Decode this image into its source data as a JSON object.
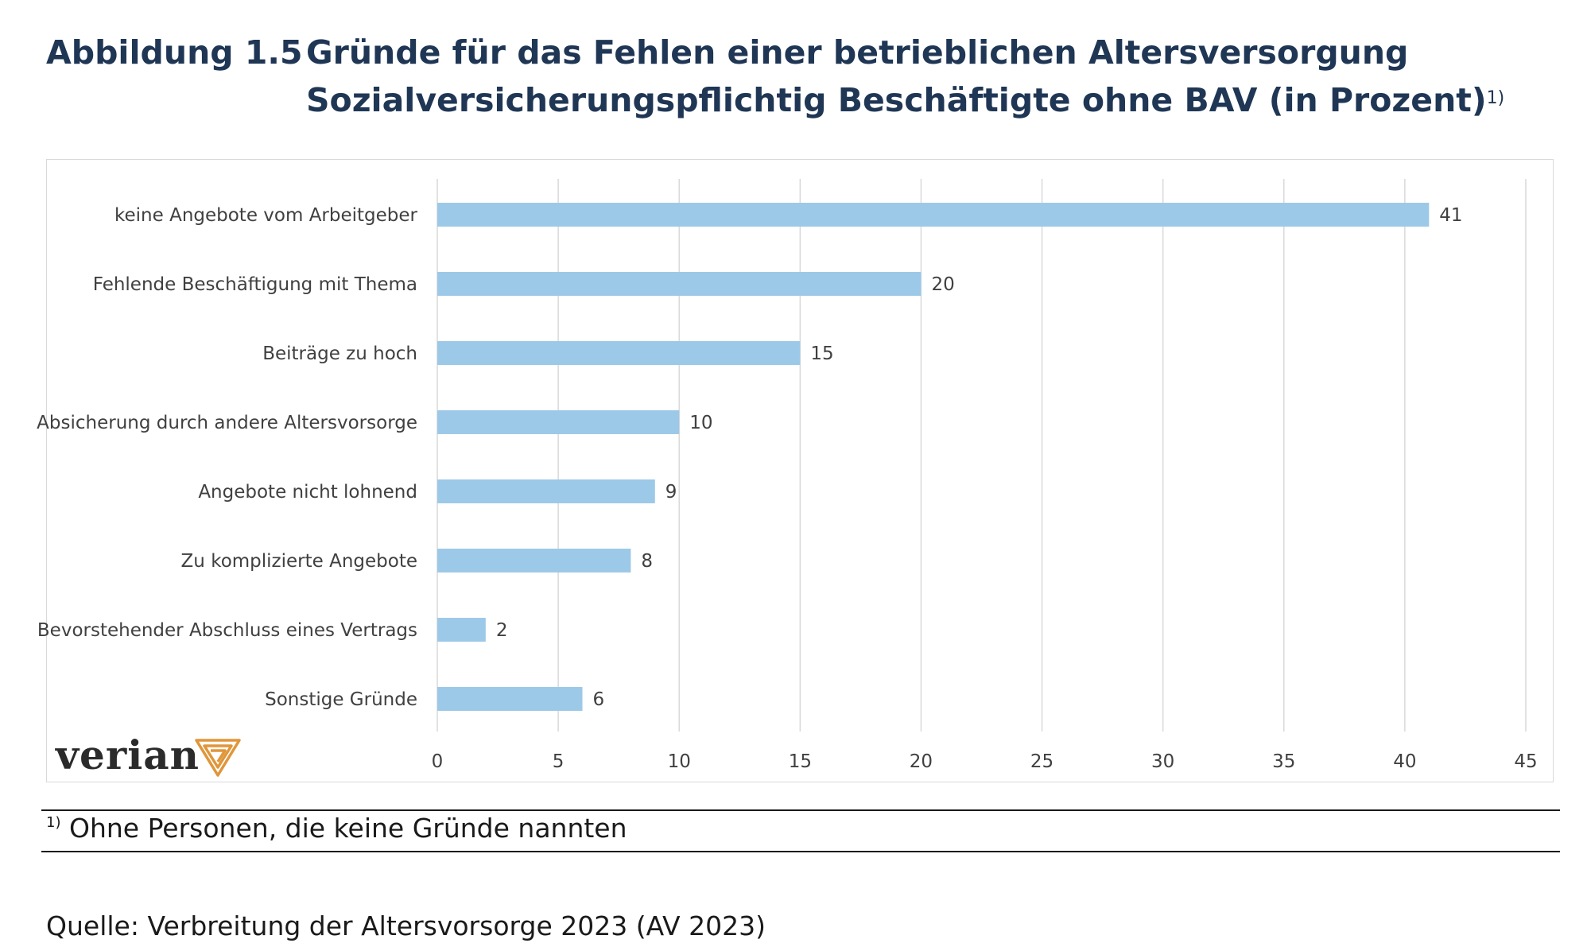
{
  "header": {
    "figure_label": "Abbildung 1.5",
    "title_line1": "Gründe für das Fehlen einer betrieblichen Altersversorgung",
    "title_line2": "Sozialversicherungspflichtig Beschäftigte ohne BAV (in Prozent)",
    "title_footnote_mark": "1)"
  },
  "logo": {
    "text": "verian",
    "mark_icon": "verian-triangle-logo-icon",
    "color": "#e0963a"
  },
  "footnote": {
    "mark": "1)",
    "text": "Ohne Personen, die keine Gründe nannten"
  },
  "source": "Quelle: Verbreitung der Altersvorsorge 2023 (AV 2023)",
  "chart_data": {
    "type": "bar",
    "orientation": "horizontal",
    "categories": [
      "keine Angebote vom Arbeitgeber",
      "Fehlende Beschäftigung mit Thema",
      "Beiträge zu hoch",
      "Absicherung durch andere Altersvorsorge",
      "Angebote nicht lohnend",
      "Zu komplizierte Angebote",
      "Bevorstehender Abschluss eines Vertrags",
      "Sonstige Gründe"
    ],
    "values": [
      41,
      20,
      15,
      10,
      9,
      8,
      2,
      6
    ],
    "xlim": [
      0,
      45
    ],
    "xticks": [
      0,
      5,
      10,
      15,
      20,
      25,
      30,
      35,
      40,
      45
    ],
    "grid": "vertical",
    "legend": "none",
    "bar_color": "#9dc9e8",
    "grid_color": "#d9d9d9"
  }
}
